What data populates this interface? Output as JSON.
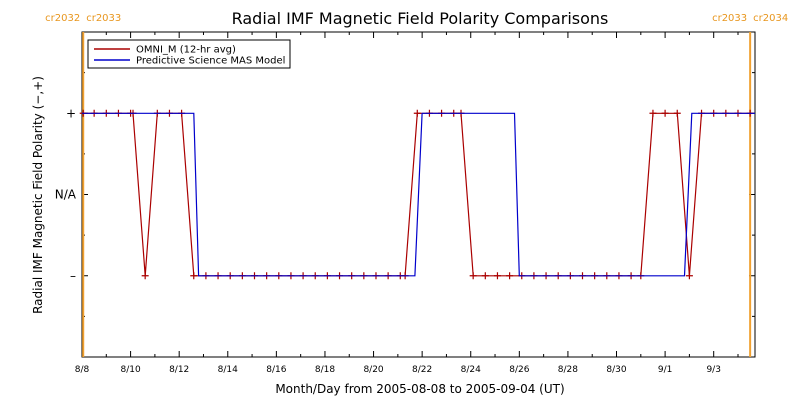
{
  "chart_data": {
    "type": "line",
    "title": "Radial IMF Magnetic Field Polarity Comparisons",
    "xlabel": "Month/Day from 2005-08-08 to 2005-09-04 (UT)",
    "ylabel": "Radial IMF Magnetic Field Polarity (−,+)",
    "x_unit": "days",
    "xlim": [
      0,
      27.7
    ],
    "ylim": [
      -2,
      2
    ],
    "x_ticks": [
      {
        "x": 0,
        "label": "8/8"
      },
      {
        "x": 2,
        "label": "8/10"
      },
      {
        "x": 4,
        "label": "8/12"
      },
      {
        "x": 6,
        "label": "8/14"
      },
      {
        "x": 8,
        "label": "8/16"
      },
      {
        "x": 10,
        "label": "8/18"
      },
      {
        "x": 12,
        "label": "8/20"
      },
      {
        "x": 14,
        "label": "8/22"
      },
      {
        "x": 16,
        "label": "8/24"
      },
      {
        "x": 18,
        "label": "8/26"
      },
      {
        "x": 20,
        "label": "8/28"
      },
      {
        "x": 22,
        "label": "8/30"
      },
      {
        "x": 24,
        "label": "9/1"
      },
      {
        "x": 26,
        "label": "9/3"
      }
    ],
    "y_ticks": [
      {
        "y": 1,
        "label": "+"
      },
      {
        "y": 0,
        "label": "N/A"
      },
      {
        "y": -1,
        "label": "–"
      }
    ],
    "rotation_markers": [
      {
        "x": 0.05,
        "left": "cr2032",
        "right": "cr2033",
        "color": "#f0a030"
      },
      {
        "x": 27.5,
        "left": "cr2033",
        "right": "cr2034",
        "color": "#f0a030"
      }
    ],
    "legend": {
      "placement": "top-left"
    },
    "series": [
      {
        "name": "OMNI_M (12-hr avg)",
        "color": "#aa0000",
        "markers": true,
        "points": [
          [
            0.05,
            1
          ],
          [
            0.5,
            1
          ],
          [
            1.0,
            1
          ],
          [
            1.5,
            1
          ],
          [
            2.0,
            1
          ],
          [
            2.1,
            1
          ],
          [
            2.6,
            -1
          ],
          [
            3.1,
            1
          ],
          [
            3.6,
            1
          ],
          [
            4.1,
            1
          ],
          [
            4.6,
            -1
          ],
          [
            5.1,
            -1
          ],
          [
            5.6,
            -1
          ],
          [
            6.1,
            -1
          ],
          [
            6.6,
            -1
          ],
          [
            7.1,
            -1
          ],
          [
            7.6,
            -1
          ],
          [
            8.1,
            -1
          ],
          [
            8.6,
            -1
          ],
          [
            9.1,
            -1
          ],
          [
            9.6,
            -1
          ],
          [
            10.1,
            -1
          ],
          [
            10.6,
            -1
          ],
          [
            11.1,
            -1
          ],
          [
            11.6,
            -1
          ],
          [
            12.1,
            -1
          ],
          [
            12.6,
            -1
          ],
          [
            13.1,
            -1
          ],
          [
            13.3,
            -1
          ],
          [
            13.8,
            1
          ],
          [
            14.3,
            1
          ],
          [
            14.8,
            1
          ],
          [
            15.3,
            1
          ],
          [
            15.6,
            1
          ],
          [
            16.1,
            -1
          ],
          [
            16.6,
            -1
          ],
          [
            17.1,
            -1
          ],
          [
            17.6,
            -1
          ],
          [
            18.1,
            -1
          ],
          [
            18.6,
            -1
          ],
          [
            19.1,
            -1
          ],
          [
            19.6,
            -1
          ],
          [
            20.1,
            -1
          ],
          [
            20.6,
            -1
          ],
          [
            21.1,
            -1
          ],
          [
            21.6,
            -1
          ],
          [
            22.1,
            -1
          ],
          [
            22.6,
            -1
          ],
          [
            23.0,
            -1
          ],
          [
            23.5,
            1
          ],
          [
            24.0,
            1
          ],
          [
            24.5,
            1
          ],
          [
            25.0,
            -1
          ],
          [
            25.5,
            1
          ],
          [
            26.0,
            1
          ],
          [
            26.5,
            1
          ],
          [
            27.0,
            1
          ],
          [
            27.5,
            1
          ]
        ]
      },
      {
        "name": "Predictive Science MAS Model",
        "color": "#0000cc",
        "markers": false,
        "points": [
          [
            0,
            1
          ],
          [
            4.6,
            1
          ],
          [
            4.8,
            -1
          ],
          [
            13.7,
            -1
          ],
          [
            14.0,
            1
          ],
          [
            17.8,
            1
          ],
          [
            18.0,
            -1
          ],
          [
            24.8,
            -1
          ],
          [
            25.1,
            1
          ],
          [
            27.7,
            1
          ]
        ]
      }
    ]
  }
}
